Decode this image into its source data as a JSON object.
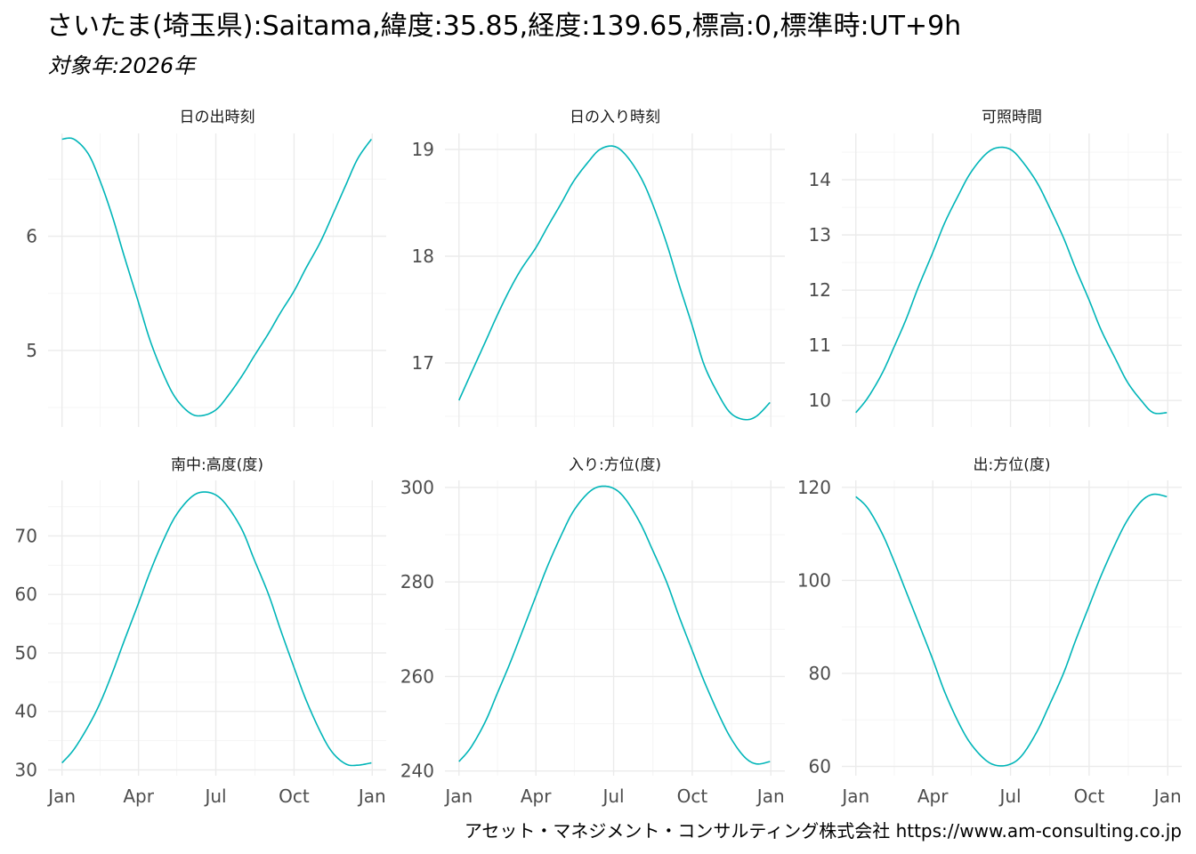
{
  "title": "さいたま(埼玉県):Saitama,緯度:35.85,経度:139.65,標高:0,標準時:UT+9h",
  "subtitle": "対象年:2026年",
  "credit": "アセット・マネジメント・コンサルティング株式会社 https://www.am-consulting.co.jp",
  "colors": {
    "line": "#00B5B8",
    "grid_major": "#EBEBEB",
    "grid_minor": "#F5F5F5",
    "axis_text": "#4D4D4D",
    "strip_text": "#1A1A1A"
  },
  "chart_data": [
    {
      "type": "line",
      "title": "日の出時刻",
      "x_ticks": [
        "Jan",
        "Apr",
        "Jul",
        "Oct",
        "Jan"
      ],
      "y_ticks": [
        5,
        6
      ],
      "ylim": [
        4.33,
        6.9
      ],
      "grid": true,
      "series": [
        {
          "x": [
            "2026-01-01",
            "2026-01-15",
            "2026-02-01",
            "2026-02-15",
            "2026-03-01",
            "2026-03-15",
            "2026-04-01",
            "2026-04-15",
            "2026-05-01",
            "2026-05-15",
            "2026-06-01",
            "2026-06-15",
            "2026-07-01",
            "2026-07-15",
            "2026-08-01",
            "2026-08-15",
            "2026-09-01",
            "2026-09-15",
            "2026-10-01",
            "2026-10-15",
            "2026-11-01",
            "2026-11-15",
            "2026-12-01",
            "2026-12-15",
            "2026-12-31"
          ],
          "y": [
            6.85,
            6.85,
            6.72,
            6.48,
            6.18,
            5.83,
            5.42,
            5.08,
            4.78,
            4.58,
            4.45,
            4.43,
            4.48,
            4.6,
            4.78,
            4.95,
            5.15,
            5.33,
            5.52,
            5.72,
            5.95,
            6.18,
            6.45,
            6.68,
            6.85
          ]
        }
      ]
    },
    {
      "type": "line",
      "title": "日の入り時刻",
      "x_ticks": [
        "Jan",
        "Apr",
        "Jul",
        "Oct",
        "Jan"
      ],
      "y_ticks": [
        17,
        18,
        19
      ],
      "ylim": [
        16.4,
        19.15
      ],
      "grid": true,
      "series": [
        {
          "x": [
            "2026-01-01",
            "2026-01-15",
            "2026-02-01",
            "2026-02-15",
            "2026-03-01",
            "2026-03-15",
            "2026-04-01",
            "2026-04-15",
            "2026-05-01",
            "2026-05-15",
            "2026-06-01",
            "2026-06-15",
            "2026-07-01",
            "2026-07-15",
            "2026-08-01",
            "2026-08-15",
            "2026-09-01",
            "2026-09-15",
            "2026-10-01",
            "2026-10-15",
            "2026-11-01",
            "2026-11-15",
            "2026-12-01",
            "2026-12-15",
            "2026-12-31"
          ],
          "y": [
            16.65,
            16.9,
            17.2,
            17.45,
            17.68,
            17.88,
            18.08,
            18.28,
            18.5,
            18.7,
            18.88,
            19.0,
            19.03,
            18.95,
            18.75,
            18.5,
            18.12,
            17.75,
            17.35,
            16.98,
            16.7,
            16.53,
            16.47,
            16.5,
            16.63
          ]
        }
      ]
    },
    {
      "type": "line",
      "title": "可照時間",
      "x_ticks": [
        "Jan",
        "Apr",
        "Jul",
        "Oct",
        "Jan"
      ],
      "y_ticks": [
        10,
        11,
        12,
        13,
        14
      ],
      "ylim": [
        9.52,
        14.84
      ],
      "grid": true,
      "series": [
        {
          "x": [
            "2026-01-01",
            "2026-01-15",
            "2026-02-01",
            "2026-02-15",
            "2026-03-01",
            "2026-03-15",
            "2026-04-01",
            "2026-04-15",
            "2026-05-01",
            "2026-05-15",
            "2026-06-01",
            "2026-06-15",
            "2026-07-01",
            "2026-07-15",
            "2026-08-01",
            "2026-08-15",
            "2026-09-01",
            "2026-09-15",
            "2026-10-01",
            "2026-10-15",
            "2026-11-01",
            "2026-11-15",
            "2026-12-01",
            "2026-12-15",
            "2026-12-31"
          ],
          "y": [
            9.78,
            10.05,
            10.5,
            10.98,
            11.48,
            12.05,
            12.68,
            13.22,
            13.72,
            14.12,
            14.45,
            14.58,
            14.55,
            14.33,
            13.95,
            13.52,
            12.95,
            12.4,
            11.82,
            11.28,
            10.75,
            10.33,
            10.0,
            9.78,
            9.78
          ]
        }
      ]
    },
    {
      "type": "line",
      "title": "南中:高度(度)",
      "x_ticks": [
        "Jan",
        "Apr",
        "Jul",
        "Oct",
        "Jan"
      ],
      "y_ticks": [
        30,
        40,
        50,
        60,
        70
      ],
      "ylim": [
        29,
        79.5
      ],
      "grid": true,
      "series": [
        {
          "x": [
            "2026-01-01",
            "2026-01-15",
            "2026-02-01",
            "2026-02-15",
            "2026-03-01",
            "2026-03-15",
            "2026-04-01",
            "2026-04-15",
            "2026-05-01",
            "2026-05-15",
            "2026-06-01",
            "2026-06-15",
            "2026-07-01",
            "2026-07-15",
            "2026-08-01",
            "2026-08-15",
            "2026-09-01",
            "2026-09-15",
            "2026-10-01",
            "2026-10-15",
            "2026-11-01",
            "2026-11-15",
            "2026-12-01",
            "2026-12-15",
            "2026-12-31"
          ],
          "y": [
            31.2,
            33.5,
            37.5,
            41.5,
            46.5,
            52.0,
            58.5,
            64.0,
            69.5,
            73.5,
            76.5,
            77.5,
            77.0,
            75.0,
            71.0,
            66.0,
            60.0,
            54.0,
            47.5,
            42.0,
            36.5,
            33.0,
            31.0,
            30.8,
            31.2
          ]
        }
      ]
    },
    {
      "type": "line",
      "title": "入り:方位(度)",
      "x_ticks": [
        "Jan",
        "Apr",
        "Jul",
        "Oct",
        "Jan"
      ],
      "y_ticks": [
        240,
        260,
        280,
        300
      ],
      "ylim": [
        239,
        301.5
      ],
      "grid": true,
      "series": [
        {
          "x": [
            "2026-01-01",
            "2026-01-15",
            "2026-02-01",
            "2026-02-15",
            "2026-03-01",
            "2026-03-15",
            "2026-04-01",
            "2026-04-15",
            "2026-05-01",
            "2026-05-15",
            "2026-06-01",
            "2026-06-15",
            "2026-07-01",
            "2026-07-15",
            "2026-08-01",
            "2026-08-15",
            "2026-09-01",
            "2026-09-15",
            "2026-10-01",
            "2026-10-15",
            "2026-11-01",
            "2026-11-15",
            "2026-12-01",
            "2026-12-15",
            "2026-12-31"
          ],
          "y": [
            242.0,
            245.0,
            250.5,
            256.5,
            262.5,
            269.0,
            277.0,
            283.5,
            290.0,
            295.0,
            298.8,
            300.2,
            299.8,
            297.5,
            292.5,
            287.0,
            280.0,
            273.0,
            265.5,
            259.0,
            252.0,
            247.0,
            243.0,
            241.5,
            242.0
          ]
        }
      ]
    },
    {
      "type": "line",
      "title": "出:方位(度)",
      "x_ticks": [
        "Jan",
        "Apr",
        "Jul",
        "Oct",
        "Jan"
      ],
      "y_ticks": [
        60,
        80,
        100,
        120
      ],
      "ylim": [
        58,
        121.5
      ],
      "grid": true,
      "series": [
        {
          "x": [
            "2026-01-01",
            "2026-01-15",
            "2026-02-01",
            "2026-02-15",
            "2026-03-01",
            "2026-03-15",
            "2026-04-01",
            "2026-04-15",
            "2026-05-01",
            "2026-05-15",
            "2026-06-01",
            "2026-06-15",
            "2026-07-01",
            "2026-07-15",
            "2026-08-01",
            "2026-08-15",
            "2026-09-01",
            "2026-09-15",
            "2026-10-01",
            "2026-10-15",
            "2026-11-01",
            "2026-11-15",
            "2026-12-01",
            "2026-12-15",
            "2026-12-31"
          ],
          "y": [
            118.0,
            115.5,
            110.0,
            104.0,
            97.5,
            91.0,
            83.0,
            76.0,
            69.5,
            65.0,
            61.5,
            60.2,
            60.5,
            62.5,
            67.5,
            73.0,
            80.0,
            87.0,
            94.5,
            101.0,
            108.0,
            113.0,
            117.0,
            118.5,
            118.0
          ]
        }
      ]
    }
  ]
}
